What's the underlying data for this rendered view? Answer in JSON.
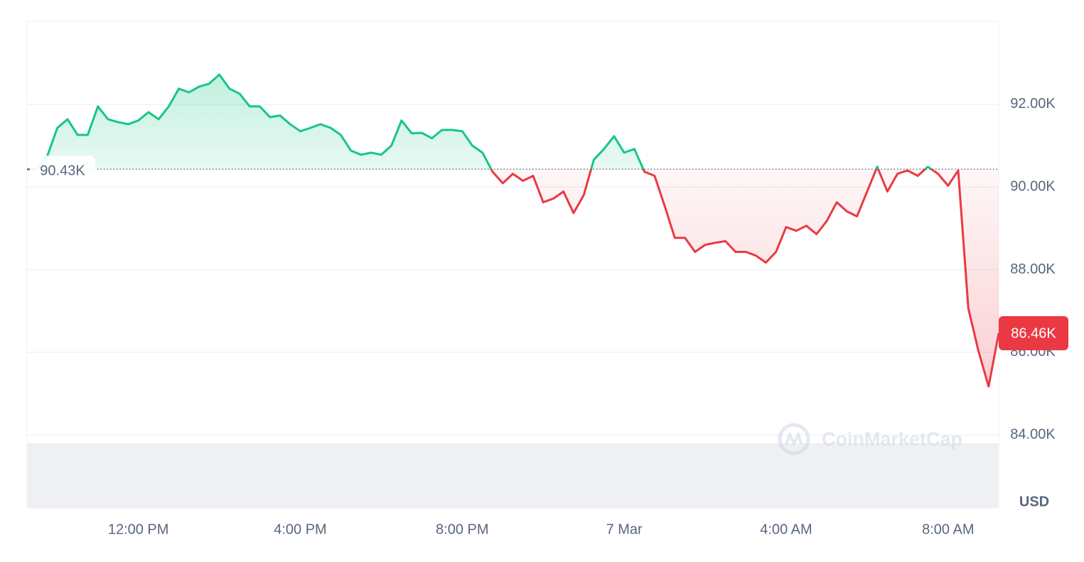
{
  "chart_data": {
    "type": "line",
    "categories": [
      null,
      null,
      null,
      null,
      null,
      null,
      null,
      null,
      null,
      null,
      null,
      "12:00 PM",
      null,
      null,
      null,
      null,
      null,
      null,
      null,
      null,
      null,
      null,
      null,
      null,
      null,
      null,
      null,
      "4:00 PM",
      null,
      null,
      null,
      null,
      null,
      null,
      null,
      null,
      null,
      null,
      null,
      null,
      null,
      null,
      null,
      "8:00 PM",
      null,
      null,
      null,
      null,
      null,
      null,
      null,
      null,
      null,
      null,
      null,
      null,
      null,
      null,
      null,
      "7 Mar",
      null,
      null,
      null,
      null,
      null,
      null,
      null,
      null,
      null,
      null,
      null,
      null,
      null,
      null,
      null,
      "4:00 AM",
      null,
      null,
      null,
      null,
      null,
      null,
      null,
      null,
      null,
      null,
      null,
      null,
      null,
      null,
      null,
      "8:00 AM",
      null,
      null,
      null,
      null,
      null
    ],
    "series": [
      {
        "values": [
          90430,
          90440,
          90750,
          91430,
          91640,
          91260,
          91260,
          91950,
          91640,
          91570,
          91520,
          91610,
          91810,
          91640,
          91950,
          92380,
          92290,
          92430,
          92500,
          92720,
          92380,
          92260,
          91950,
          91950,
          91690,
          91730,
          91520,
          91350,
          91430,
          91520,
          91430,
          91260,
          90880,
          90780,
          90830,
          90780,
          91000,
          91610,
          91300,
          91310,
          91180,
          91380,
          91380,
          91350,
          91000,
          90830,
          90370,
          90090,
          90320,
          90150,
          90270,
          89630,
          89720,
          89890,
          89370,
          89800,
          90660,
          90920,
          91230,
          90830,
          90920,
          90370,
          90270,
          89540,
          88770,
          88770,
          88430,
          88600,
          88650,
          88690,
          88430,
          88430,
          88340,
          88170,
          88430,
          89030,
          88940,
          89060,
          88860,
          89170,
          89630,
          89410,
          89290,
          89890,
          90490,
          89890,
          90320,
          90400,
          90270,
          90490,
          90320,
          90030,
          90400,
          87060,
          86030,
          85170,
          86460
        ]
      }
    ],
    "colors": {
      "up": "#16c784",
      "down": "#ea3943"
    },
    "baseline": {
      "value": 90430,
      "label": "90.43K"
    },
    "current_price": {
      "value": 86460,
      "label": "86.46K"
    },
    "ylim": [
      82230,
      94010
    ],
    "yticks": [
      {
        "value": 84000,
        "label": "84.00K"
      },
      {
        "value": 86000,
        "label": "86.00K"
      },
      {
        "value": 88000,
        "label": "88.00K"
      },
      {
        "value": 90000,
        "label": "90.00K"
      },
      {
        "value": 92000,
        "label": "92.00K"
      }
    ],
    "y_axis_label": "USD",
    "watermark": "CoinMarketCap",
    "grid": true
  }
}
